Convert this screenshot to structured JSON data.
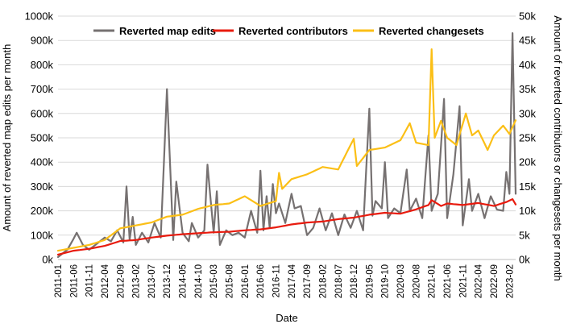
{
  "chart_data": {
    "type": "line",
    "xlabel": "Date",
    "ylabel_left": "Amount of reverted map edits per month",
    "ylabel_right": "Amount of reverted contributors or changesets per month",
    "ylim_left": [
      0,
      1000000
    ],
    "ylim_right": [
      0,
      50000
    ],
    "yticks_left": [
      "0k",
      "100k",
      "200k",
      "300k",
      "400k",
      "500k",
      "600k",
      "700k",
      "800k",
      "900k",
      "1000k"
    ],
    "yticks_right": [
      "0k",
      "5k",
      "10k",
      "15k",
      "20k",
      "25k",
      "30k",
      "35k",
      "40k",
      "45k",
      "50k"
    ],
    "grid": true,
    "legend_position": "top",
    "x_tick_labels": [
      "2011-01",
      "2011-06",
      "2011-11",
      "2012-04",
      "2012-09",
      "2013-02",
      "2013-07",
      "2013-12",
      "2014-05",
      "2014-10",
      "2015-03",
      "2015-08",
      "2016-01",
      "2016-06",
      "2016-11",
      "2017-04",
      "2017-09",
      "2018-02",
      "2018-07",
      "2018-12",
      "2019-05",
      "2019-10",
      "2020-03",
      "2020-08",
      "2021-01",
      "2021-06",
      "2021-11",
      "2022-04",
      "2022-09",
      "2023-02"
    ],
    "x_start": "2011-01",
    "x_end": "2023-04",
    "series": [
      {
        "name": "Reverted map edits",
        "axis": "left",
        "color": "#767171",
        "keypoints": [
          [
            "2011-01",
            10000
          ],
          [
            "2011-04",
            40000
          ],
          [
            "2011-06",
            85000
          ],
          [
            "2011-07",
            110000
          ],
          [
            "2011-09",
            60000
          ],
          [
            "2011-11",
            40000
          ],
          [
            "2012-02",
            70000
          ],
          [
            "2012-04",
            90000
          ],
          [
            "2012-06",
            75000
          ],
          [
            "2012-08",
            120000
          ],
          [
            "2012-10",
            70000
          ],
          [
            "2012-11",
            300000
          ],
          [
            "2012-12",
            80000
          ],
          [
            "2013-01",
            175000
          ],
          [
            "2013-02",
            60000
          ],
          [
            "2013-04",
            110000
          ],
          [
            "2013-06",
            70000
          ],
          [
            "2013-08",
            150000
          ],
          [
            "2013-10",
            90000
          ],
          [
            "2013-12",
            700000
          ],
          [
            "2014-02",
            80000
          ],
          [
            "2014-03",
            320000
          ],
          [
            "2014-05",
            110000
          ],
          [
            "2014-07",
            75000
          ],
          [
            "2014-08",
            150000
          ],
          [
            "2014-10",
            90000
          ],
          [
            "2014-12",
            120000
          ],
          [
            "2015-01",
            390000
          ],
          [
            "2015-03",
            110000
          ],
          [
            "2015-04",
            280000
          ],
          [
            "2015-05",
            60000
          ],
          [
            "2015-07",
            120000
          ],
          [
            "2015-09",
            100000
          ],
          [
            "2015-11",
            110000
          ],
          [
            "2016-01",
            90000
          ],
          [
            "2016-03",
            200000
          ],
          [
            "2016-05",
            110000
          ],
          [
            "2016-06",
            365000
          ],
          [
            "2016-07",
            120000
          ],
          [
            "2016-08",
            260000
          ],
          [
            "2016-09",
            130000
          ],
          [
            "2016-10",
            310000
          ],
          [
            "2016-11",
            190000
          ],
          [
            "2016-12",
            230000
          ],
          [
            "2017-02",
            150000
          ],
          [
            "2017-04",
            270000
          ],
          [
            "2017-05",
            210000
          ],
          [
            "2017-07",
            220000
          ],
          [
            "2017-09",
            100000
          ],
          [
            "2017-11",
            130000
          ],
          [
            "2018-01",
            210000
          ],
          [
            "2018-03",
            120000
          ],
          [
            "2018-05",
            190000
          ],
          [
            "2018-07",
            100000
          ],
          [
            "2018-09",
            185000
          ],
          [
            "2018-11",
            130000
          ],
          [
            "2019-01",
            200000
          ],
          [
            "2019-03",
            120000
          ],
          [
            "2019-05",
            620000
          ],
          [
            "2019-06",
            180000
          ],
          [
            "2019-07",
            240000
          ],
          [
            "2019-09",
            210000
          ],
          [
            "2019-10",
            400000
          ],
          [
            "2019-11",
            170000
          ],
          [
            "2020-01",
            210000
          ],
          [
            "2020-03",
            190000
          ],
          [
            "2020-05",
            370000
          ],
          [
            "2020-06",
            200000
          ],
          [
            "2020-08",
            250000
          ],
          [
            "2020-10",
            170000
          ],
          [
            "2020-12",
            510000
          ],
          [
            "2021-01",
            200000
          ],
          [
            "2021-03",
            270000
          ],
          [
            "2021-05",
            660000
          ],
          [
            "2021-06",
            170000
          ],
          [
            "2021-08",
            350000
          ],
          [
            "2021-10",
            630000
          ],
          [
            "2021-11",
            140000
          ],
          [
            "2022-01",
            330000
          ],
          [
            "2022-02",
            200000
          ],
          [
            "2022-04",
            270000
          ],
          [
            "2022-06",
            170000
          ],
          [
            "2022-08",
            260000
          ],
          [
            "2022-10",
            205000
          ],
          [
            "2022-12",
            200000
          ],
          [
            "2023-01",
            360000
          ],
          [
            "2023-02",
            270000
          ],
          [
            "2023-03",
            930000
          ],
          [
            "2023-04",
            270000
          ]
        ]
      },
      {
        "name": "Reverted contributors",
        "axis": "right",
        "color": "#e81b0e",
        "keypoints": [
          [
            "2011-01",
            1000
          ],
          [
            "2011-06",
            1800
          ],
          [
            "2011-11",
            2200
          ],
          [
            "2012-04",
            2800
          ],
          [
            "2012-09",
            3800
          ],
          [
            "2013-02",
            4000
          ],
          [
            "2013-07",
            4500
          ],
          [
            "2013-12",
            4900
          ],
          [
            "2014-05",
            5200
          ],
          [
            "2014-10",
            5400
          ],
          [
            "2015-03",
            5600
          ],
          [
            "2015-08",
            5700
          ],
          [
            "2016-01",
            6000
          ],
          [
            "2016-06",
            6200
          ],
          [
            "2016-11",
            6600
          ],
          [
            "2017-04",
            7200
          ],
          [
            "2017-09",
            7600
          ],
          [
            "2018-02",
            7800
          ],
          [
            "2018-07",
            8300
          ],
          [
            "2018-12",
            8600
          ],
          [
            "2019-05",
            9200
          ],
          [
            "2019-10",
            9600
          ],
          [
            "2020-03",
            9400
          ],
          [
            "2020-08",
            10300
          ],
          [
            "2020-12",
            11200
          ],
          [
            "2021-01",
            12200
          ],
          [
            "2021-04",
            11000
          ],
          [
            "2021-06",
            11500
          ],
          [
            "2021-11",
            11200
          ],
          [
            "2022-04",
            11600
          ],
          [
            "2022-09",
            11000
          ],
          [
            "2023-01",
            11800
          ],
          [
            "2023-03",
            12400
          ],
          [
            "2023-04",
            11300
          ]
        ]
      },
      {
        "name": "Reverted changesets",
        "axis": "right",
        "color": "#fbbf16",
        "keypoints": [
          [
            "2011-01",
            1800
          ],
          [
            "2011-06",
            2400
          ],
          [
            "2011-11",
            3000
          ],
          [
            "2012-04",
            4000
          ],
          [
            "2012-09",
            6400
          ],
          [
            "2013-02",
            7000
          ],
          [
            "2013-07",
            7600
          ],
          [
            "2013-12",
            8800
          ],
          [
            "2014-05",
            9200
          ],
          [
            "2014-10",
            10400
          ],
          [
            "2015-03",
            11200
          ],
          [
            "2015-08",
            11500
          ],
          [
            "2016-01",
            13000
          ],
          [
            "2016-06",
            11000
          ],
          [
            "2016-11",
            12000
          ],
          [
            "2016-12",
            17800
          ],
          [
            "2017-01",
            14500
          ],
          [
            "2017-04",
            16500
          ],
          [
            "2017-09",
            17500
          ],
          [
            "2018-02",
            19000
          ],
          [
            "2018-07",
            18500
          ],
          [
            "2018-12",
            24800
          ],
          [
            "2019-01",
            19200
          ],
          [
            "2019-05",
            22500
          ],
          [
            "2019-10",
            23000
          ],
          [
            "2020-03",
            24500
          ],
          [
            "2020-06",
            28000
          ],
          [
            "2020-08",
            24000
          ],
          [
            "2020-12",
            23500
          ],
          [
            "2021-01",
            43200
          ],
          [
            "2021-02",
            25000
          ],
          [
            "2021-04",
            28500
          ],
          [
            "2021-06",
            25000
          ],
          [
            "2021-09",
            23500
          ],
          [
            "2021-12",
            30000
          ],
          [
            "2022-02",
            25500
          ],
          [
            "2022-04",
            26500
          ],
          [
            "2022-07",
            22500
          ],
          [
            "2022-09",
            25500
          ],
          [
            "2022-12",
            27500
          ],
          [
            "2023-02",
            25800
          ],
          [
            "2023-04",
            28600
          ]
        ]
      }
    ]
  }
}
